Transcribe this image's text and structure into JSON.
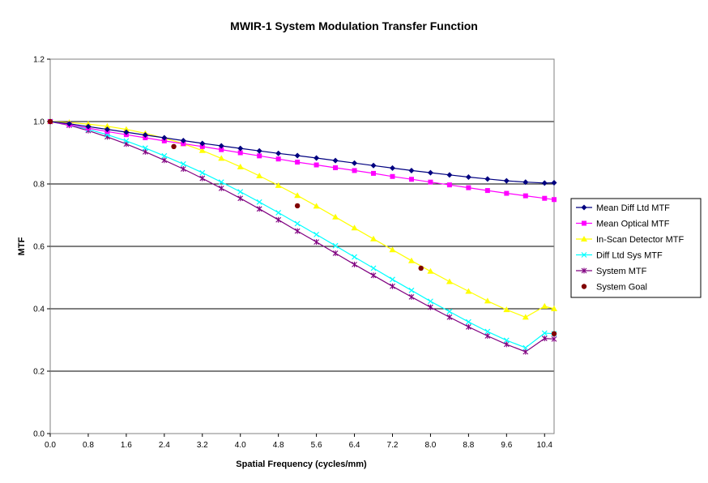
{
  "chart_data": {
    "type": "line",
    "title": "MWIR-1 System Modulation Transfer Function",
    "xlabel": "Spatial Frequency (cycles/mm)",
    "ylabel": "MTF",
    "xlim": [
      0,
      10.6
    ],
    "ylim": [
      0,
      1.2
    ],
    "x_ticks": [
      "0.0",
      "0.8",
      "1.6",
      "2.4",
      "3.2",
      "4.0",
      "4.8",
      "5.6",
      "6.4",
      "7.2",
      "8.0",
      "8.8",
      "9.6",
      "10.4"
    ],
    "y_ticks": [
      "0.0",
      "0.2",
      "0.4",
      "0.6",
      "0.8",
      "1.0",
      "1.2"
    ],
    "grid": "horizontal major lines",
    "legend_position": "right",
    "x": [
      0,
      0.4,
      0.8,
      1.2,
      1.6,
      2.0,
      2.4,
      2.8,
      3.2,
      3.6,
      4.0,
      4.4,
      4.8,
      5.2,
      5.6,
      6.0,
      6.4,
      6.8,
      7.2,
      7.6,
      8.0,
      8.4,
      8.8,
      9.2,
      9.6,
      10.0,
      10.4,
      10.6
    ],
    "series": [
      {
        "name": "Mean Diff Ltd MTF",
        "color": "#000080",
        "marker": "diamond",
        "values": [
          1.0,
          0.993,
          0.984,
          0.975,
          0.966,
          0.957,
          0.948,
          0.939,
          0.93,
          0.922,
          0.914,
          0.906,
          0.898,
          0.891,
          0.883,
          0.875,
          0.867,
          0.859,
          0.851,
          0.843,
          0.836,
          0.829,
          0.822,
          0.816,
          0.81,
          0.806,
          0.803,
          0.804
        ]
      },
      {
        "name": "Mean Optical MTF",
        "color": "#ff00ff",
        "marker": "square",
        "values": [
          1.0,
          0.99,
          0.979,
          0.968,
          0.958,
          0.948,
          0.938,
          0.929,
          0.92,
          0.91,
          0.9,
          0.89,
          0.88,
          0.87,
          0.861,
          0.852,
          0.843,
          0.834,
          0.824,
          0.815,
          0.806,
          0.797,
          0.788,
          0.779,
          0.77,
          0.762,
          0.754,
          0.75
        ]
      },
      {
        "name": "In-Scan Detector MTF",
        "color": "#ffff00",
        "marker": "triangle",
        "values": [
          1.0,
          0.997,
          0.992,
          0.985,
          0.975,
          0.962,
          0.947,
          0.929,
          0.907,
          0.882,
          0.855,
          0.826,
          0.795,
          0.763,
          0.729,
          0.694,
          0.659,
          0.624,
          0.589,
          0.554,
          0.52,
          0.487,
          0.456,
          0.425,
          0.397,
          0.373,
          0.408,
          0.4
        ]
      },
      {
        "name": "Diff Ltd Sys MTF",
        "color": "#00ffff",
        "marker": "x",
        "values": [
          1.0,
          0.99,
          0.975,
          0.958,
          0.938,
          0.915,
          0.89,
          0.864,
          0.836,
          0.806,
          0.775,
          0.742,
          0.708,
          0.673,
          0.638,
          0.602,
          0.566,
          0.53,
          0.494,
          0.459,
          0.424,
          0.391,
          0.358,
          0.327,
          0.299,
          0.275,
          0.322,
          0.32
        ]
      },
      {
        "name": "System MTF",
        "color": "#800080",
        "marker": "star",
        "values": [
          1.0,
          0.988,
          0.971,
          0.951,
          0.928,
          0.903,
          0.876,
          0.848,
          0.818,
          0.786,
          0.754,
          0.72,
          0.685,
          0.649,
          0.614,
          0.578,
          0.542,
          0.507,
          0.472,
          0.438,
          0.405,
          0.373,
          0.342,
          0.313,
          0.286,
          0.262,
          0.305,
          0.303
        ]
      }
    ],
    "goal": {
      "name": "System Goal",
      "color": "#800000",
      "marker": "circle",
      "x": [
        0,
        2.6,
        5.2,
        7.8,
        10.6
      ],
      "values": [
        1.0,
        0.92,
        0.73,
        0.53,
        0.32
      ]
    }
  }
}
